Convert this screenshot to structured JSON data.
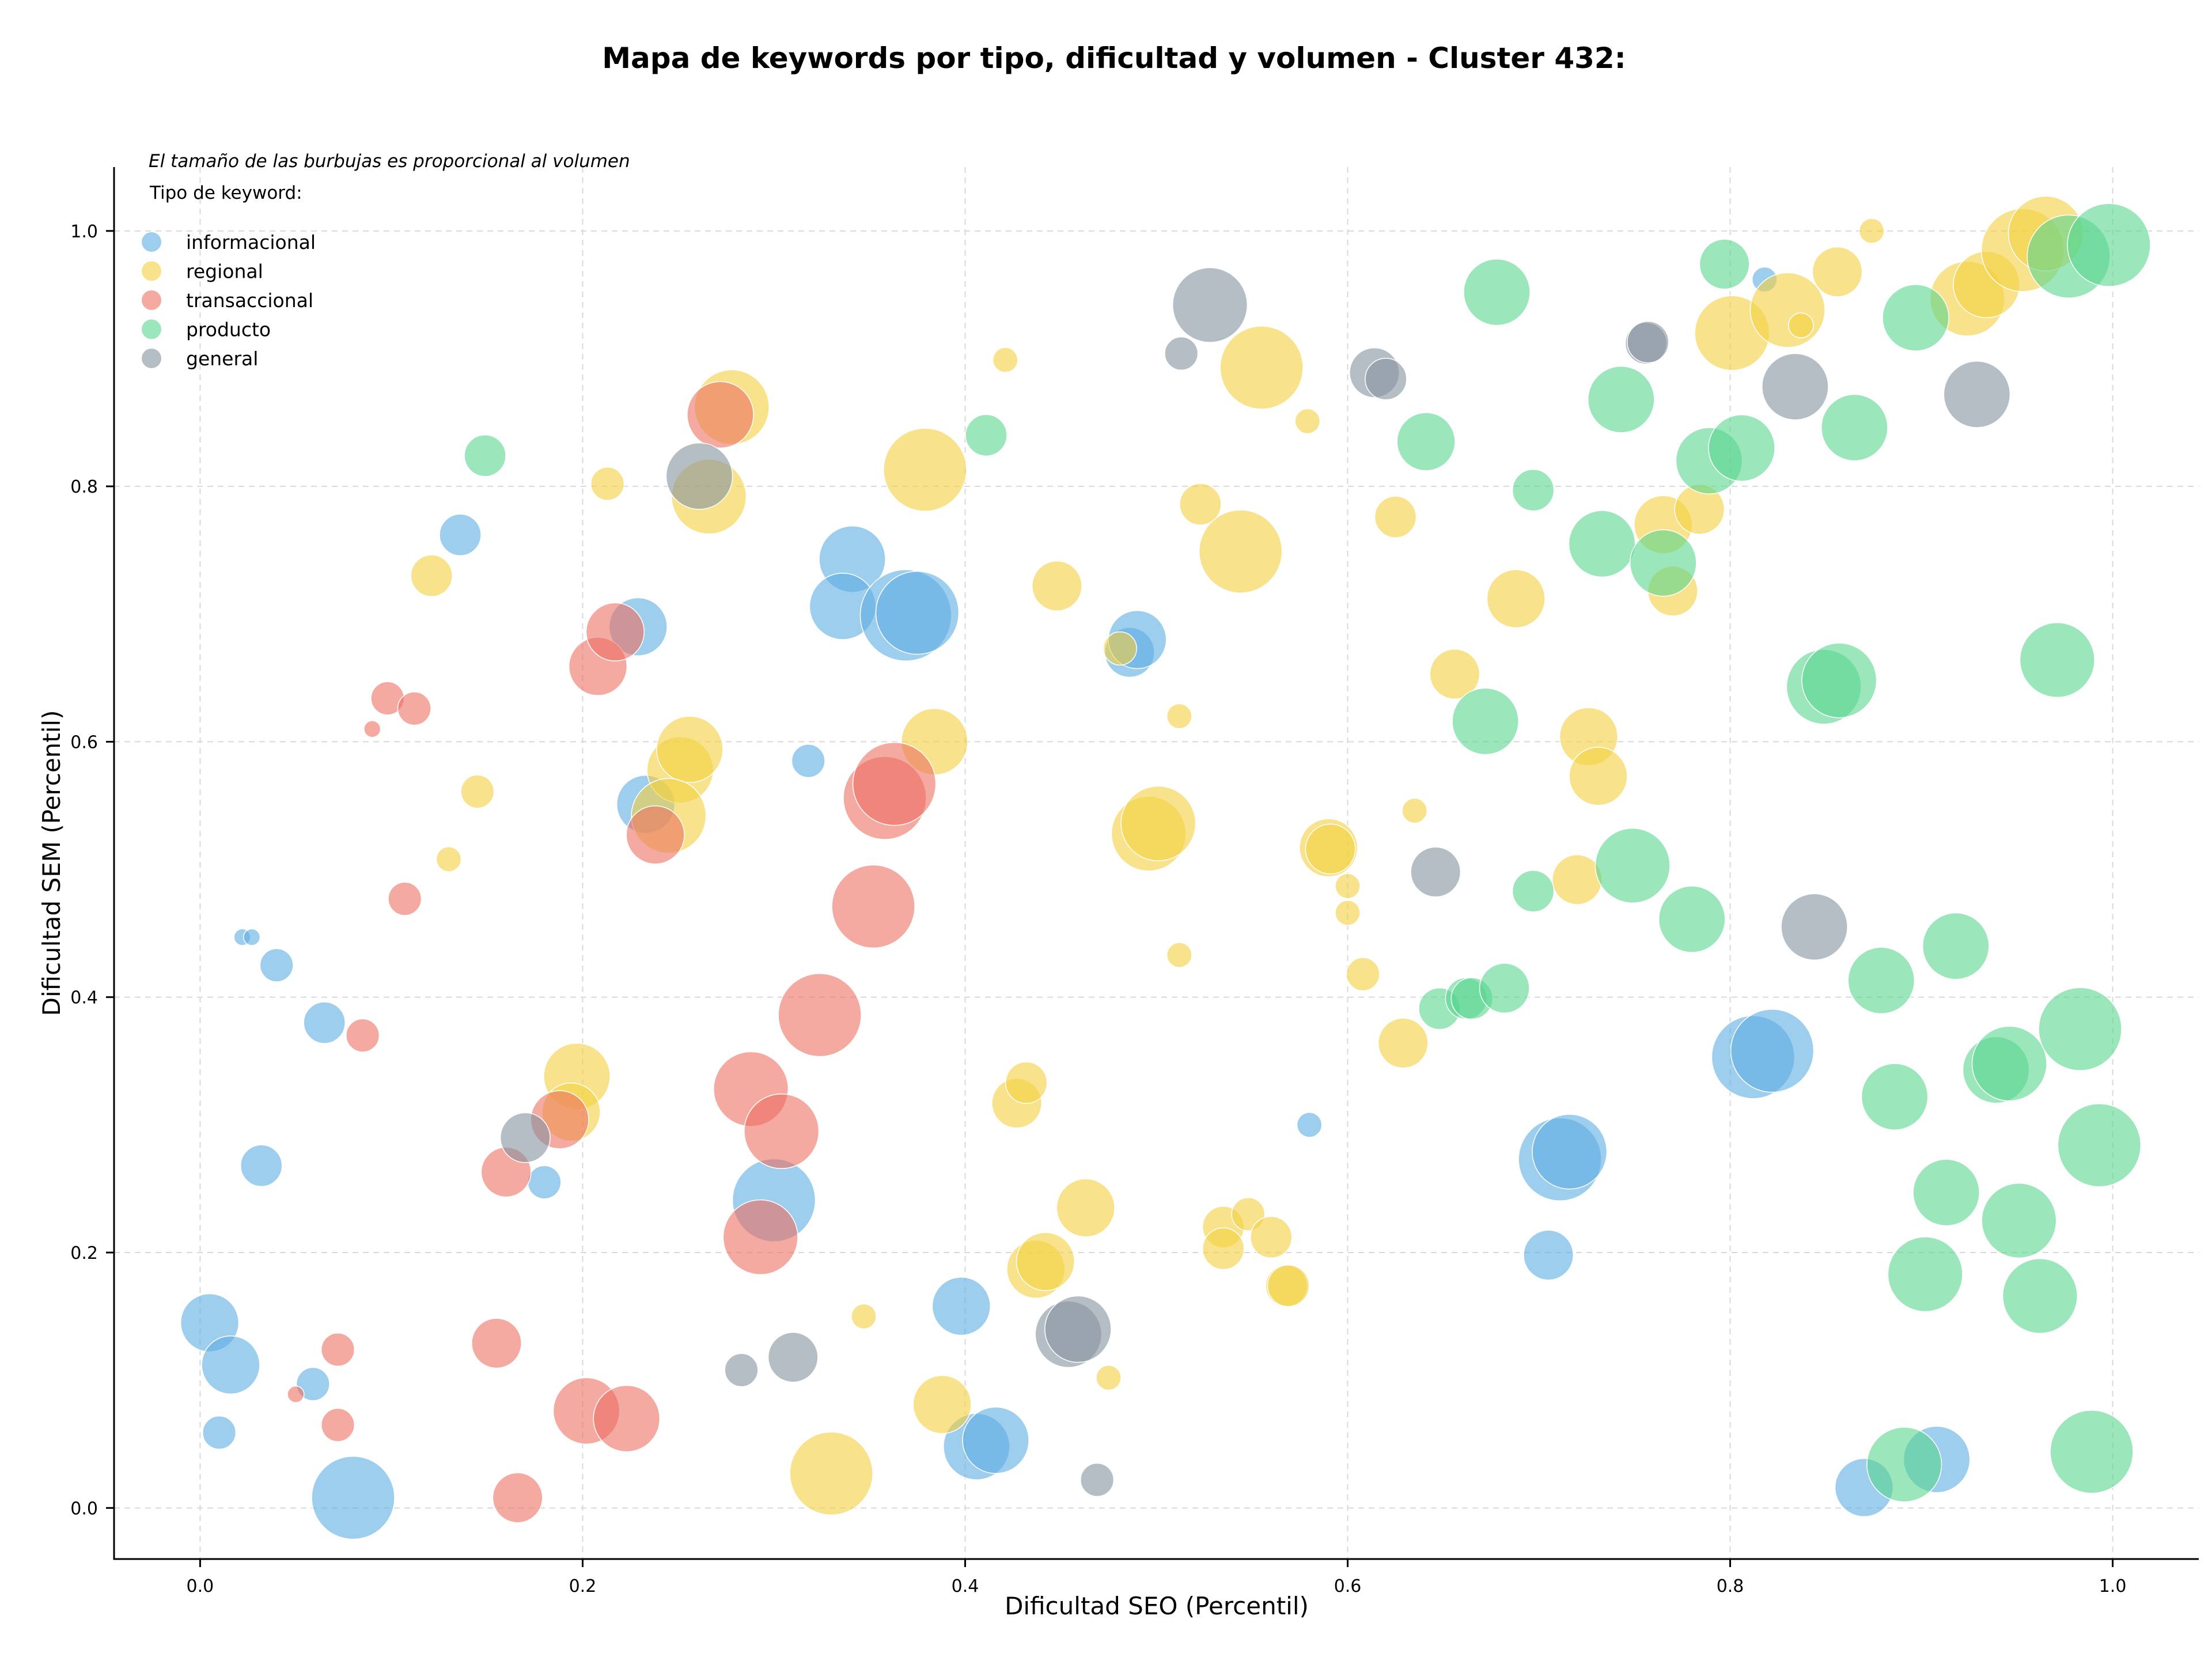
{
  "chart_data": {
    "type": "scatter",
    "title": "Mapa de keywords por tipo, dificultad y volumen - Cluster 432:",
    "xlabel": "Dificultad SEO (Percentil)",
    "ylabel": "Dificultad SEM (Percentil)",
    "xlim": [
      -0.045,
      1.045
    ],
    "ylim": [
      -0.04,
      1.05
    ],
    "xticks": [
      "0.0",
      "0.2",
      "0.4",
      "0.6",
      "0.8",
      "1.0"
    ],
    "yticks": [
      "0.0",
      "0.2",
      "0.4",
      "0.6",
      "0.8",
      "1.0"
    ],
    "grid": true,
    "size_note": "El tamaño de las burbujas es proporcional al volumen",
    "legend": {
      "title": "Tipo de keyword:",
      "placement": "top-left"
    },
    "series": [
      {
        "name": "informacional",
        "color": "#5DADE2",
        "points": [
          [
            0.005,
            0.145,
            7
          ],
          [
            0.016,
            0.112,
            7
          ],
          [
            0.01,
            0.059,
            4
          ],
          [
            0.059,
            0.097,
            4
          ],
          [
            0.08,
            0.008,
            10
          ],
          [
            0.032,
            0.268,
            5
          ],
          [
            0.065,
            0.38,
            5
          ],
          [
            0.04,
            0.425,
            4
          ],
          [
            0.022,
            0.447,
            2
          ],
          [
            0.027,
            0.447,
            2
          ],
          [
            0.136,
            0.762,
            5
          ],
          [
            0.18,
            0.255,
            4
          ],
          [
            0.229,
            0.69,
            7
          ],
          [
            0.233,
            0.551,
            7
          ],
          [
            0.318,
            0.585,
            4
          ],
          [
            0.341,
            0.743,
            8
          ],
          [
            0.336,
            0.706,
            8
          ],
          [
            0.369,
            0.699,
            11
          ],
          [
            0.375,
            0.701,
            10
          ],
          [
            0.3,
            0.241,
            10
          ],
          [
            0.398,
            0.158,
            7
          ],
          [
            0.406,
            0.048,
            8
          ],
          [
            0.416,
            0.053,
            8
          ],
          [
            0.486,
            0.67,
            6
          ],
          [
            0.49,
            0.68,
            7
          ],
          [
            0.58,
            0.3,
            3
          ],
          [
            0.705,
            0.198,
            6
          ],
          [
            0.711,
            0.273,
            10
          ],
          [
            0.716,
            0.279,
            9
          ],
          [
            0.812,
            0.353,
            10
          ],
          [
            0.822,
            0.358,
            10
          ],
          [
            0.818,
            0.962,
            3
          ],
          [
            0.87,
            0.016,
            7
          ],
          [
            0.908,
            0.038,
            8
          ]
        ]
      },
      {
        "name": "regional",
        "color": "#F4D03F",
        "points": [
          [
            0.121,
            0.73,
            5
          ],
          [
            0.13,
            0.508,
            3
          ],
          [
            0.145,
            0.561,
            4
          ],
          [
            0.213,
            0.802,
            4
          ],
          [
            0.197,
            0.338,
            8
          ],
          [
            0.194,
            0.31,
            7
          ],
          [
            0.251,
            0.578,
            8
          ],
          [
            0.256,
            0.594,
            8
          ],
          [
            0.245,
            0.542,
            9
          ],
          [
            0.266,
            0.792,
            9
          ],
          [
            0.278,
            0.862,
            9
          ],
          [
            0.379,
            0.813,
            10
          ],
          [
            0.384,
            0.6,
            8
          ],
          [
            0.347,
            0.15,
            3
          ],
          [
            0.33,
            0.027,
            10
          ],
          [
            0.388,
            0.081,
            7
          ],
          [
            0.421,
            0.899,
            3
          ],
          [
            0.427,
            0.317,
            6
          ],
          [
            0.432,
            0.333,
            5
          ],
          [
            0.437,
            0.187,
            7
          ],
          [
            0.442,
            0.193,
            7
          ],
          [
            0.448,
            0.722,
            6
          ],
          [
            0.463,
            0.235,
            7
          ],
          [
            0.475,
            0.102,
            3
          ],
          [
            0.481,
            0.673,
            4
          ],
          [
            0.496,
            0.528,
            9
          ],
          [
            0.501,
            0.536,
            9
          ],
          [
            0.512,
            0.433,
            3
          ],
          [
            0.512,
            0.62,
            3
          ],
          [
            0.523,
            0.786,
            5
          ],
          [
            0.535,
            0.22,
            5
          ],
          [
            0.535,
            0.203,
            5
          ],
          [
            0.544,
            0.749,
            10
          ],
          [
            0.548,
            0.23,
            4
          ],
          [
            0.555,
            0.893,
            10
          ],
          [
            0.56,
            0.212,
            5
          ],
          [
            0.568,
            0.174,
            5
          ],
          [
            0.569,
            0.174,
            5
          ],
          [
            0.579,
            0.851,
            3
          ],
          [
            0.59,
            0.517,
            7
          ],
          [
            0.591,
            0.516,
            6
          ],
          [
            0.6,
            0.487,
            3
          ],
          [
            0.6,
            0.466,
            3
          ],
          [
            0.608,
            0.418,
            4
          ],
          [
            0.625,
            0.776,
            5
          ],
          [
            0.629,
            0.364,
            6
          ],
          [
            0.635,
            0.546,
            3
          ],
          [
            0.656,
            0.653,
            6
          ],
          [
            0.688,
            0.712,
            7
          ],
          [
            0.72,
            0.492,
            6
          ],
          [
            0.726,
            0.604,
            7
          ],
          [
            0.731,
            0.573,
            7
          ],
          [
            0.765,
            0.77,
            7
          ],
          [
            0.77,
            0.718,
            6
          ],
          [
            0.784,
            0.782,
            6
          ],
          [
            0.801,
            0.92,
            9
          ],
          [
            0.83,
            0.938,
            9
          ],
          [
            0.837,
            0.926,
            3
          ],
          [
            0.856,
            0.968,
            6
          ],
          [
            0.874,
            1.0,
            3
          ],
          [
            0.924,
            0.947,
            9
          ],
          [
            0.934,
            0.958,
            8
          ],
          [
            0.953,
            0.985,
            10
          ],
          [
            0.965,
            0.998,
            9
          ]
        ]
      },
      {
        "name": "transaccional",
        "color": "#EC7063",
        "points": [
          [
            0.05,
            0.089,
            2
          ],
          [
            0.072,
            0.124,
            4
          ],
          [
            0.072,
            0.065,
            4
          ],
          [
            0.085,
            0.37,
            4
          ],
          [
            0.09,
            0.61,
            2
          ],
          [
            0.098,
            0.634,
            4
          ],
          [
            0.107,
            0.477,
            4
          ],
          [
            0.112,
            0.626,
            4
          ],
          [
            0.155,
            0.129,
            6
          ],
          [
            0.16,
            0.263,
            6
          ],
          [
            0.166,
            0.008,
            6
          ],
          [
            0.188,
            0.304,
            7
          ],
          [
            0.202,
            0.076,
            8
          ],
          [
            0.208,
            0.659,
            7
          ],
          [
            0.217,
            0.686,
            7
          ],
          [
            0.223,
            0.07,
            8
          ],
          [
            0.238,
            0.527,
            7
          ],
          [
            0.272,
            0.856,
            8
          ],
          [
            0.288,
            0.328,
            9
          ],
          [
            0.293,
            0.212,
            9
          ],
          [
            0.304,
            0.295,
            9
          ],
          [
            0.324,
            0.386,
            10
          ],
          [
            0.352,
            0.471,
            10
          ],
          [
            0.358,
            0.556,
            10
          ],
          [
            0.363,
            0.567,
            10
          ]
        ]
      },
      {
        "name": "producto",
        "color": "#58D68D",
        "points": [
          [
            0.149,
            0.824,
            5
          ],
          [
            0.411,
            0.84,
            5
          ],
          [
            0.641,
            0.835,
            7
          ],
          [
            0.648,
            0.391,
            5
          ],
          [
            0.662,
            0.399,
            5
          ],
          [
            0.665,
            0.399,
            5
          ],
          [
            0.672,
            0.616,
            8
          ],
          [
            0.678,
            0.952,
            8
          ],
          [
            0.682,
            0.407,
            6
          ],
          [
            0.697,
            0.797,
            5
          ],
          [
            0.697,
            0.483,
            5
          ],
          [
            0.733,
            0.755,
            8
          ],
          [
            0.743,
            0.868,
            8
          ],
          [
            0.749,
            0.503,
            9
          ],
          [
            0.765,
            0.74,
            8
          ],
          [
            0.78,
            0.461,
            8
          ],
          [
            0.789,
            0.82,
            8
          ],
          [
            0.797,
            0.974,
            6
          ],
          [
            0.806,
            0.83,
            8
          ],
          [
            0.849,
            0.643,
            9
          ],
          [
            0.857,
            0.648,
            9
          ],
          [
            0.865,
            0.846,
            8
          ],
          [
            0.879,
            0.413,
            8
          ],
          [
            0.886,
            0.322,
            8
          ],
          [
            0.897,
            0.932,
            8
          ],
          [
            0.891,
            0.034,
            9
          ],
          [
            0.902,
            0.183,
            9
          ],
          [
            0.913,
            0.247,
            8
          ],
          [
            0.918,
            0.44,
            8
          ],
          [
            0.939,
            0.343,
            8
          ],
          [
            0.946,
            0.348,
            9
          ],
          [
            0.951,
            0.225,
            9
          ],
          [
            0.962,
            0.166,
            9
          ],
          [
            0.971,
            0.664,
            9
          ],
          [
            0.977,
            0.98,
            10
          ],
          [
            0.983,
            0.375,
            10
          ],
          [
            0.989,
            0.044,
            10
          ],
          [
            0.993,
            0.284,
            10
          ],
          [
            0.998,
            0.989,
            10
          ]
        ]
      },
      {
        "name": "general",
        "color": "#85929E",
        "points": [
          [
            0.17,
            0.29,
            6
          ],
          [
            0.261,
            0.808,
            8
          ],
          [
            0.283,
            0.108,
            4
          ],
          [
            0.31,
            0.118,
            6
          ],
          [
            0.454,
            0.136,
            8
          ],
          [
            0.459,
            0.14,
            8
          ],
          [
            0.469,
            0.022,
            4
          ],
          [
            0.513,
            0.904,
            4
          ],
          [
            0.528,
            0.942,
            9
          ],
          [
            0.614,
            0.889,
            6
          ],
          [
            0.62,
            0.884,
            5
          ],
          [
            0.646,
            0.498,
            6
          ],
          [
            0.756,
            0.912,
            5
          ],
          [
            0.757,
            0.913,
            5
          ],
          [
            0.834,
            0.878,
            8
          ],
          [
            0.844,
            0.455,
            8
          ],
          [
            0.929,
            0.872,
            8
          ]
        ]
      }
    ]
  }
}
